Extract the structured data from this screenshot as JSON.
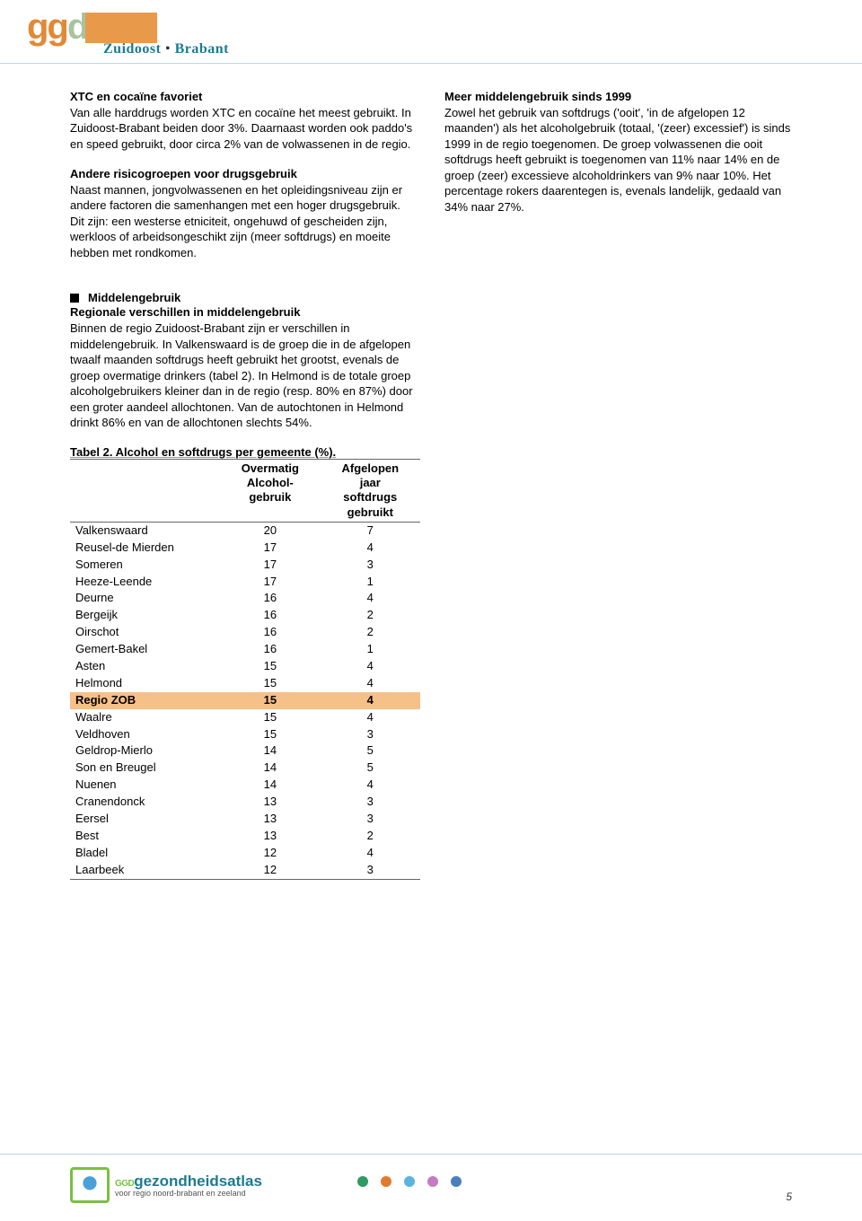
{
  "logo": {
    "org": "ggd",
    "region_a": "Zuidoost",
    "region_b": "Brabant",
    "brand_primary": "#e18935",
    "brand_secondary": "#a8c3a0",
    "brand_box": "#e89a4a",
    "brand_teal": "#1d7a91"
  },
  "col_left": {
    "b1_title": "XTC en cocaïne favoriet",
    "b1_text": "Van alle harddrugs worden XTC en cocaïne het meest gebruikt. In Zuidoost-Brabant beiden door 3%. Daarnaast worden ook paddo's en speed gebruikt, door circa 2% van de volwassenen in de regio.",
    "b2_title": "Andere risicogroepen voor drugsgebruik",
    "b2_text": "Naast mannen, jongvolwassenen en het opleidingsniveau zijn er andere factoren die samenhangen met  een hoger drugsgebruik. Dit zijn: een westerse etniciteit, ongehuwd of gescheiden zijn, werkloos of  arbeidsongeschikt zijn (meer softdrugs) en moeite hebben met rondkomen."
  },
  "col_right": {
    "b1_title": "Meer middelengebruik sinds 1999",
    "b1_text": "Zowel het gebruik van softdrugs ('ooit', 'in de afgelopen 12 maanden') als het alcoholgebruik (totaal, '(zeer) excessief') is sinds 1999 in de regio toegenomen. De groep volwassenen die ooit softdrugs heeft gebruikt is toegenomen van 11% naar 14% en de groep (zeer) excessieve alcoholdrinkers van 9% naar 10%. Het percentage rokers daarentegen is, evenals landelijk, gedaald van 34% naar 27%."
  },
  "section": {
    "head": "Middelengebruik",
    "sub_title": "Regionale verschillen in middelengebruik",
    "sub_text": "Binnen de regio Zuidoost-Brabant zijn er verschillen in middelengebruik. In Valkenswaard is de groep die in de afgelopen twaalf maanden softdrugs heeft gebruikt het grootst, evenals de groep overmatige drinkers (tabel 2). In Helmond is de totale groep alcoholgebruikers kleiner dan in de regio (resp. 80% en 87%) door een groter aandeel allochtonen. Van de autochtonen in Helmond drinkt 86% en van de allochtonen slechts 54%."
  },
  "table": {
    "title": "Tabel 2. Alcohol en softdrugs per gemeente (%).",
    "col1_l1": "Overmatig",
    "col1_l2": "Alcohol-",
    "col1_l3": "gebruik",
    "col2_l1": "Afgelopen",
    "col2_l2": "jaar",
    "col2_l3": "softdrugs",
    "col2_l4": "gebruikt",
    "highlight_color": "#f6c089",
    "rows": [
      {
        "name": "Valkenswaard",
        "a": "20",
        "b": "7",
        "hl": false
      },
      {
        "name": "Reusel-de Mierden",
        "a": "17",
        "b": "4",
        "hl": false
      },
      {
        "name": "Someren",
        "a": "17",
        "b": "3",
        "hl": false
      },
      {
        "name": "Heeze-Leende",
        "a": "17",
        "b": "1",
        "hl": false
      },
      {
        "name": "Deurne",
        "a": "16",
        "b": "4",
        "hl": false
      },
      {
        "name": "Bergeijk",
        "a": "16",
        "b": "2",
        "hl": false
      },
      {
        "name": "Oirschot",
        "a": "16",
        "b": "2",
        "hl": false
      },
      {
        "name": "Gemert-Bakel",
        "a": "16",
        "b": "1",
        "hl": false
      },
      {
        "name": "Asten",
        "a": "15",
        "b": "4",
        "hl": false
      },
      {
        "name": "Helmond",
        "a": "15",
        "b": "4",
        "hl": false
      },
      {
        "name": "Regio ZOB",
        "a": "15",
        "b": "4",
        "hl": true
      },
      {
        "name": "Waalre",
        "a": "15",
        "b": "4",
        "hl": false
      },
      {
        "name": "Veldhoven",
        "a": "15",
        "b": "3",
        "hl": false
      },
      {
        "name": "Geldrop-Mierlo",
        "a": "14",
        "b": "5",
        "hl": false
      },
      {
        "name": "Son en Breugel",
        "a": "14",
        "b": "5",
        "hl": false
      },
      {
        "name": "Nuenen",
        "a": "14",
        "b": "4",
        "hl": false
      },
      {
        "name": "Cranendonck",
        "a": "13",
        "b": "3",
        "hl": false
      },
      {
        "name": "Eersel",
        "a": "13",
        "b": "3",
        "hl": false
      },
      {
        "name": "Best",
        "a": "13",
        "b": "2",
        "hl": false
      },
      {
        "name": "Bladel",
        "a": "12",
        "b": "4",
        "hl": false
      },
      {
        "name": "Laarbeek",
        "a": "12",
        "b": "3",
        "hl": false
      }
    ]
  },
  "footer": {
    "brand_prefix": "GGD",
    "brand_main": "gezondheidsatlas",
    "sub": "voor regio noord-brabant en zeeland",
    "dots": [
      "#2f9a62",
      "#e27a2e",
      "#5ab4e0",
      "#c57bc3",
      "#4a80c0"
    ]
  },
  "page_number": "5"
}
